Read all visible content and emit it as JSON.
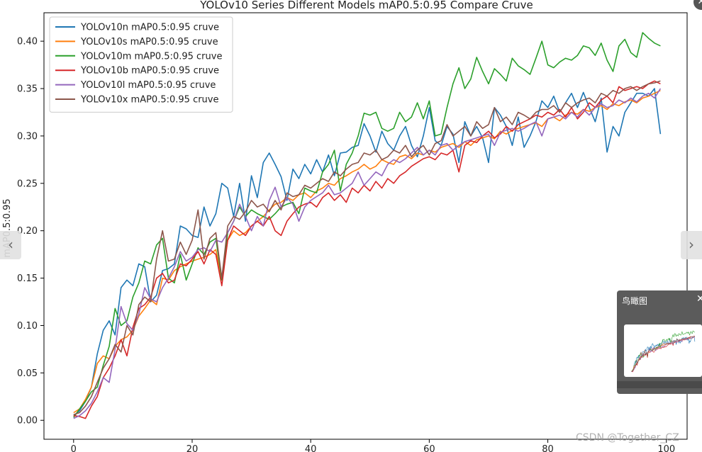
{
  "chart_data": {
    "type": "line",
    "title": "YOLOv10 Series Different Models mAP0.5:0.95 Compare Cruve",
    "xlabel": "",
    "ylabel": "mAP0.5:0.95",
    "xlim": [
      -5,
      103.5
    ],
    "ylim": [
      -0.02,
      0.43
    ],
    "x_ticks": [
      0,
      20,
      40,
      60,
      80,
      100
    ],
    "y_ticks": [
      0.0,
      0.05,
      0.1,
      0.15,
      0.2,
      0.25,
      0.3,
      0.35,
      0.4
    ],
    "x_tick_labels": [
      "0",
      "20",
      "40",
      "60",
      "80",
      "100"
    ],
    "y_tick_labels": [
      "0.00",
      "0.05",
      "0.10",
      "0.15",
      "0.20",
      "0.25",
      "0.30",
      "0.35",
      "0.40"
    ],
    "grid": false,
    "legend_position": "top-left",
    "x": [
      0,
      1,
      2,
      3,
      4,
      5,
      6,
      7,
      8,
      9,
      10,
      11,
      12,
      13,
      14,
      15,
      16,
      17,
      18,
      19,
      20,
      21,
      22,
      23,
      24,
      25,
      26,
      27,
      28,
      29,
      30,
      31,
      32,
      33,
      34,
      35,
      36,
      37,
      38,
      39,
      40,
      41,
      42,
      43,
      44,
      45,
      46,
      47,
      48,
      49,
      50,
      51,
      52,
      53,
      54,
      55,
      56,
      57,
      58,
      59,
      60,
      61,
      62,
      63,
      64,
      65,
      66,
      67,
      68,
      69,
      70,
      71,
      72,
      73,
      74,
      75,
      76,
      77,
      78,
      79,
      80,
      81,
      82,
      83,
      84,
      85,
      86,
      87,
      88,
      89,
      90,
      91,
      92,
      93,
      94,
      95,
      96,
      97,
      98,
      99
    ],
    "series": [
      {
        "name": "YOLOv10n mAP0.5:0.95 cruve",
        "color": "#1f77b4",
        "values": [
          0.005,
          0.01,
          0.02,
          0.035,
          0.07,
          0.095,
          0.105,
          0.09,
          0.14,
          0.148,
          0.142,
          0.165,
          0.162,
          0.125,
          0.132,
          0.158,
          0.16,
          0.165,
          0.205,
          0.202,
          0.195,
          0.193,
          0.225,
          0.205,
          0.218,
          0.25,
          0.245,
          0.215,
          0.25,
          0.21,
          0.258,
          0.235,
          0.272,
          0.282,
          0.27,
          0.257,
          0.232,
          0.265,
          0.255,
          0.27,
          0.26,
          0.275,
          0.262,
          0.28,
          0.258,
          0.282,
          0.283,
          0.288,
          0.29,
          0.313,
          0.3,
          0.283,
          0.305,
          0.292,
          0.285,
          0.3,
          0.31,
          0.29,
          0.278,
          0.3,
          0.33,
          0.295,
          0.29,
          0.31,
          0.302,
          0.272,
          0.315,
          0.3,
          0.31,
          0.298,
          0.272,
          0.33,
          0.322,
          0.31,
          0.29,
          0.32,
          0.288,
          0.3,
          0.315,
          0.337,
          0.33,
          0.342,
          0.325,
          0.335,
          0.345,
          0.33,
          0.346,
          0.33,
          0.315,
          0.34,
          0.283,
          0.31,
          0.3,
          0.325,
          0.335,
          0.345,
          0.345,
          0.342,
          0.35,
          0.302
        ]
      },
      {
        "name": "YOLOv10s mAP0.5:0.95 cruve",
        "color": "#ff7f0e",
        "values": [
          0.008,
          0.012,
          0.022,
          0.035,
          0.06,
          0.068,
          0.065,
          0.078,
          0.085,
          0.088,
          0.095,
          0.11,
          0.118,
          0.127,
          0.122,
          0.15,
          0.148,
          0.158,
          0.162,
          0.165,
          0.168,
          0.17,
          0.172,
          0.175,
          0.18,
          0.148,
          0.19,
          0.2,
          0.195,
          0.198,
          0.205,
          0.21,
          0.215,
          0.222,
          0.228,
          0.23,
          0.235,
          0.232,
          0.238,
          0.24,
          0.235,
          0.242,
          0.245,
          0.25,
          0.248,
          0.255,
          0.258,
          0.262,
          0.265,
          0.27,
          0.265,
          0.268,
          0.275,
          0.272,
          0.27,
          0.278,
          0.28,
          0.276,
          0.282,
          0.28,
          0.285,
          0.283,
          0.288,
          0.29,
          0.292,
          0.288,
          0.294,
          0.29,
          0.296,
          0.298,
          0.3,
          0.297,
          0.305,
          0.302,
          0.306,
          0.308,
          0.31,
          0.312,
          0.314,
          0.31,
          0.318,
          0.32,
          0.316,
          0.322,
          0.325,
          0.323,
          0.328,
          0.326,
          0.33,
          0.332,
          0.328,
          0.334,
          0.332,
          0.336,
          0.338,
          0.335,
          0.34,
          0.342,
          0.345,
          0.348
        ]
      },
      {
        "name": "YOLOv10m mAP0.5:0.95 cruve",
        "color": "#2ca02c",
        "values": [
          0.003,
          0.012,
          0.02,
          0.03,
          0.035,
          0.058,
          0.078,
          0.118,
          0.1,
          0.105,
          0.13,
          0.145,
          0.168,
          0.165,
          0.185,
          0.192,
          0.15,
          0.145,
          0.175,
          0.148,
          0.165,
          0.182,
          0.175,
          0.188,
          0.192,
          0.148,
          0.198,
          0.21,
          0.225,
          0.215,
          0.222,
          0.218,
          0.215,
          0.212,
          0.218,
          0.225,
          0.228,
          0.23,
          0.218,
          0.245,
          0.242,
          0.24,
          0.262,
          0.27,
          0.285,
          0.242,
          0.27,
          0.282,
          0.3,
          0.324,
          0.322,
          0.325,
          0.308,
          0.305,
          0.308,
          0.325,
          0.315,
          0.32,
          0.335,
          0.318,
          0.337,
          0.3,
          0.302,
          0.33,
          0.355,
          0.372,
          0.35,
          0.36,
          0.383,
          0.368,
          0.355,
          0.371,
          0.365,
          0.358,
          0.382,
          0.374,
          0.37,
          0.365,
          0.382,
          0.4,
          0.375,
          0.372,
          0.378,
          0.382,
          0.38,
          0.385,
          0.395,
          0.393,
          0.385,
          0.398,
          0.38,
          0.368,
          0.395,
          0.402,
          0.388,
          0.383,
          0.409,
          0.403,
          0.398,
          0.395
        ]
      },
      {
        "name": "YOLOv10b mAP0.5:0.95 cruve",
        "color": "#d62728",
        "values": [
          0.005,
          0.004,
          0.002,
          0.015,
          0.025,
          0.045,
          0.055,
          0.068,
          0.085,
          0.068,
          0.098,
          0.118,
          0.122,
          0.13,
          0.15,
          0.155,
          0.145,
          0.148,
          0.165,
          0.163,
          0.17,
          0.178,
          0.165,
          0.18,
          0.175,
          0.142,
          0.19,
          0.205,
          0.2,
          0.195,
          0.205,
          0.21,
          0.205,
          0.215,
          0.2,
          0.195,
          0.21,
          0.218,
          0.225,
          0.228,
          0.23,
          0.225,
          0.235,
          0.24,
          0.232,
          0.238,
          0.23,
          0.245,
          0.24,
          0.248,
          0.242,
          0.252,
          0.245,
          0.255,
          0.25,
          0.258,
          0.262,
          0.268,
          0.272,
          0.276,
          0.278,
          0.275,
          0.282,
          0.28,
          0.285,
          0.262,
          0.29,
          0.295,
          0.293,
          0.3,
          0.305,
          0.298,
          0.302,
          0.31,
          0.305,
          0.312,
          0.315,
          0.318,
          0.322,
          0.32,
          0.325,
          0.322,
          0.328,
          0.32,
          0.33,
          0.318,
          0.325,
          0.335,
          0.33,
          0.338,
          0.342,
          0.335,
          0.352,
          0.348,
          0.35,
          0.352,
          0.35,
          0.355,
          0.358,
          0.355
        ]
      },
      {
        "name": "YOLOv10l mAP0.5:0.95 cruve",
        "color": "#9467bd",
        "values": [
          0.002,
          0.005,
          0.01,
          0.018,
          0.03,
          0.045,
          0.04,
          0.075,
          0.12,
          0.102,
          0.095,
          0.112,
          0.14,
          0.128,
          0.125,
          0.14,
          0.15,
          0.162,
          0.178,
          0.168,
          0.172,
          0.18,
          0.182,
          0.178,
          0.19,
          0.188,
          0.198,
          0.21,
          0.228,
          0.215,
          0.2,
          0.215,
          0.205,
          0.232,
          0.246,
          0.225,
          0.235,
          0.228,
          0.21,
          0.225,
          0.232,
          0.236,
          0.24,
          0.248,
          0.238,
          0.24,
          0.245,
          0.25,
          0.262,
          0.248,
          0.255,
          0.262,
          0.258,
          0.27,
          0.275,
          0.272,
          0.276,
          0.282,
          0.288,
          0.28,
          0.285,
          0.28,
          0.29,
          0.292,
          0.285,
          0.29,
          0.294,
          0.296,
          0.298,
          0.3,
          0.302,
          0.29,
          0.304,
          0.306,
          0.308,
          0.305,
          0.308,
          0.312,
          0.315,
          0.3,
          0.318,
          0.32,
          0.322,
          0.318,
          0.325,
          0.32,
          0.328,
          0.322,
          0.33,
          0.334,
          0.33,
          0.332,
          0.338,
          0.335,
          0.34,
          0.336,
          0.342,
          0.345,
          0.34,
          0.35
        ]
      },
      {
        "name": "YOLOv10x mAP0.5:0.95 cruve",
        "color": "#8c564b",
        "values": [
          0.006,
          0.008,
          0.015,
          0.025,
          0.04,
          0.055,
          0.065,
          0.08,
          0.072,
          0.1,
          0.09,
          0.122,
          0.13,
          0.125,
          0.17,
          0.2,
          0.168,
          0.17,
          0.188,
          0.175,
          0.19,
          0.222,
          0.17,
          0.192,
          0.198,
          0.15,
          0.205,
          0.215,
          0.212,
          0.22,
          0.232,
          0.225,
          0.228,
          0.22,
          0.232,
          0.222,
          0.24,
          0.236,
          0.238,
          0.248,
          0.245,
          0.25,
          0.255,
          0.252,
          0.262,
          0.258,
          0.265,
          0.27,
          0.272,
          0.282,
          0.28,
          0.285,
          0.275,
          0.278,
          0.285,
          0.282,
          0.29,
          0.278,
          0.285,
          0.29,
          0.28,
          0.292,
          0.295,
          0.312,
          0.3,
          0.305,
          0.31,
          0.3,
          0.315,
          0.308,
          0.312,
          0.33,
          0.315,
          0.32,
          0.312,
          0.325,
          0.322,
          0.318,
          0.325,
          0.328,
          0.328,
          0.332,
          0.325,
          0.335,
          0.33,
          0.335,
          0.338,
          0.34,
          0.335,
          0.345,
          0.342,
          0.348,
          0.345,
          0.35,
          0.352,
          0.348,
          0.352,
          0.355,
          0.356,
          0.358
        ]
      }
    ]
  },
  "overlay": {
    "nav_prev_glyph": "‹",
    "nav_next_glyph": "›",
    "close_glyph": "✕",
    "birdseye_title": "鸟瞰图",
    "birdseye_close_glyph": "✕",
    "watermark": "CSDN @Together_CZ"
  }
}
